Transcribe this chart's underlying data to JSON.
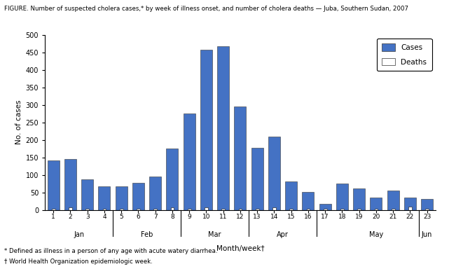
{
  "weeks": [
    1,
    2,
    3,
    4,
    5,
    6,
    7,
    8,
    9,
    10,
    11,
    12,
    13,
    14,
    15,
    16,
    17,
    18,
    19,
    20,
    21,
    22,
    23
  ],
  "cases": [
    142,
    145,
    88,
    67,
    67,
    78,
    95,
    175,
    275,
    457,
    467,
    296,
    178,
    209,
    82,
    52,
    18,
    75,
    62,
    35,
    55,
    35,
    31
  ],
  "deaths": [
    3,
    8,
    3,
    3,
    3,
    3,
    3,
    8,
    3,
    8,
    3,
    3,
    3,
    8,
    3,
    3,
    3,
    3,
    3,
    3,
    3,
    10,
    3
  ],
  "cases_color": "#4472c4",
  "deaths_color": "#ffffff",
  "deaths_edge_color": "#333333",
  "bar_edge_color": "#333333",
  "title": "FIGURE. Number of suspected cholera cases,* by week of illness onset, and number of cholera deaths — Juba, Southern Sudan, 2007",
  "ylabel": "No. of cases",
  "xlabel": "Month/week†",
  "ylim": [
    0,
    500
  ],
  "yticks": [
    0,
    50,
    100,
    150,
    200,
    250,
    300,
    350,
    400,
    450,
    500
  ],
  "month_positions": {
    "Jan": 2.5,
    "Feb": 6.5,
    "Mar": 10.5,
    "Apr": 14.5,
    "May": 20.0,
    "Jun": 23
  },
  "month_dividers": [
    4.5,
    8.5,
    12.5,
    16.5,
    22.5
  ],
  "footnote1": "* Defined as illness in a person of any age with acute watery diarrhea.",
  "footnote2": "† World Health Organization epidemiologic week.",
  "bg_color": "#ffffff",
  "legend_cases": "Cases",
  "legend_deaths": "Deaths"
}
